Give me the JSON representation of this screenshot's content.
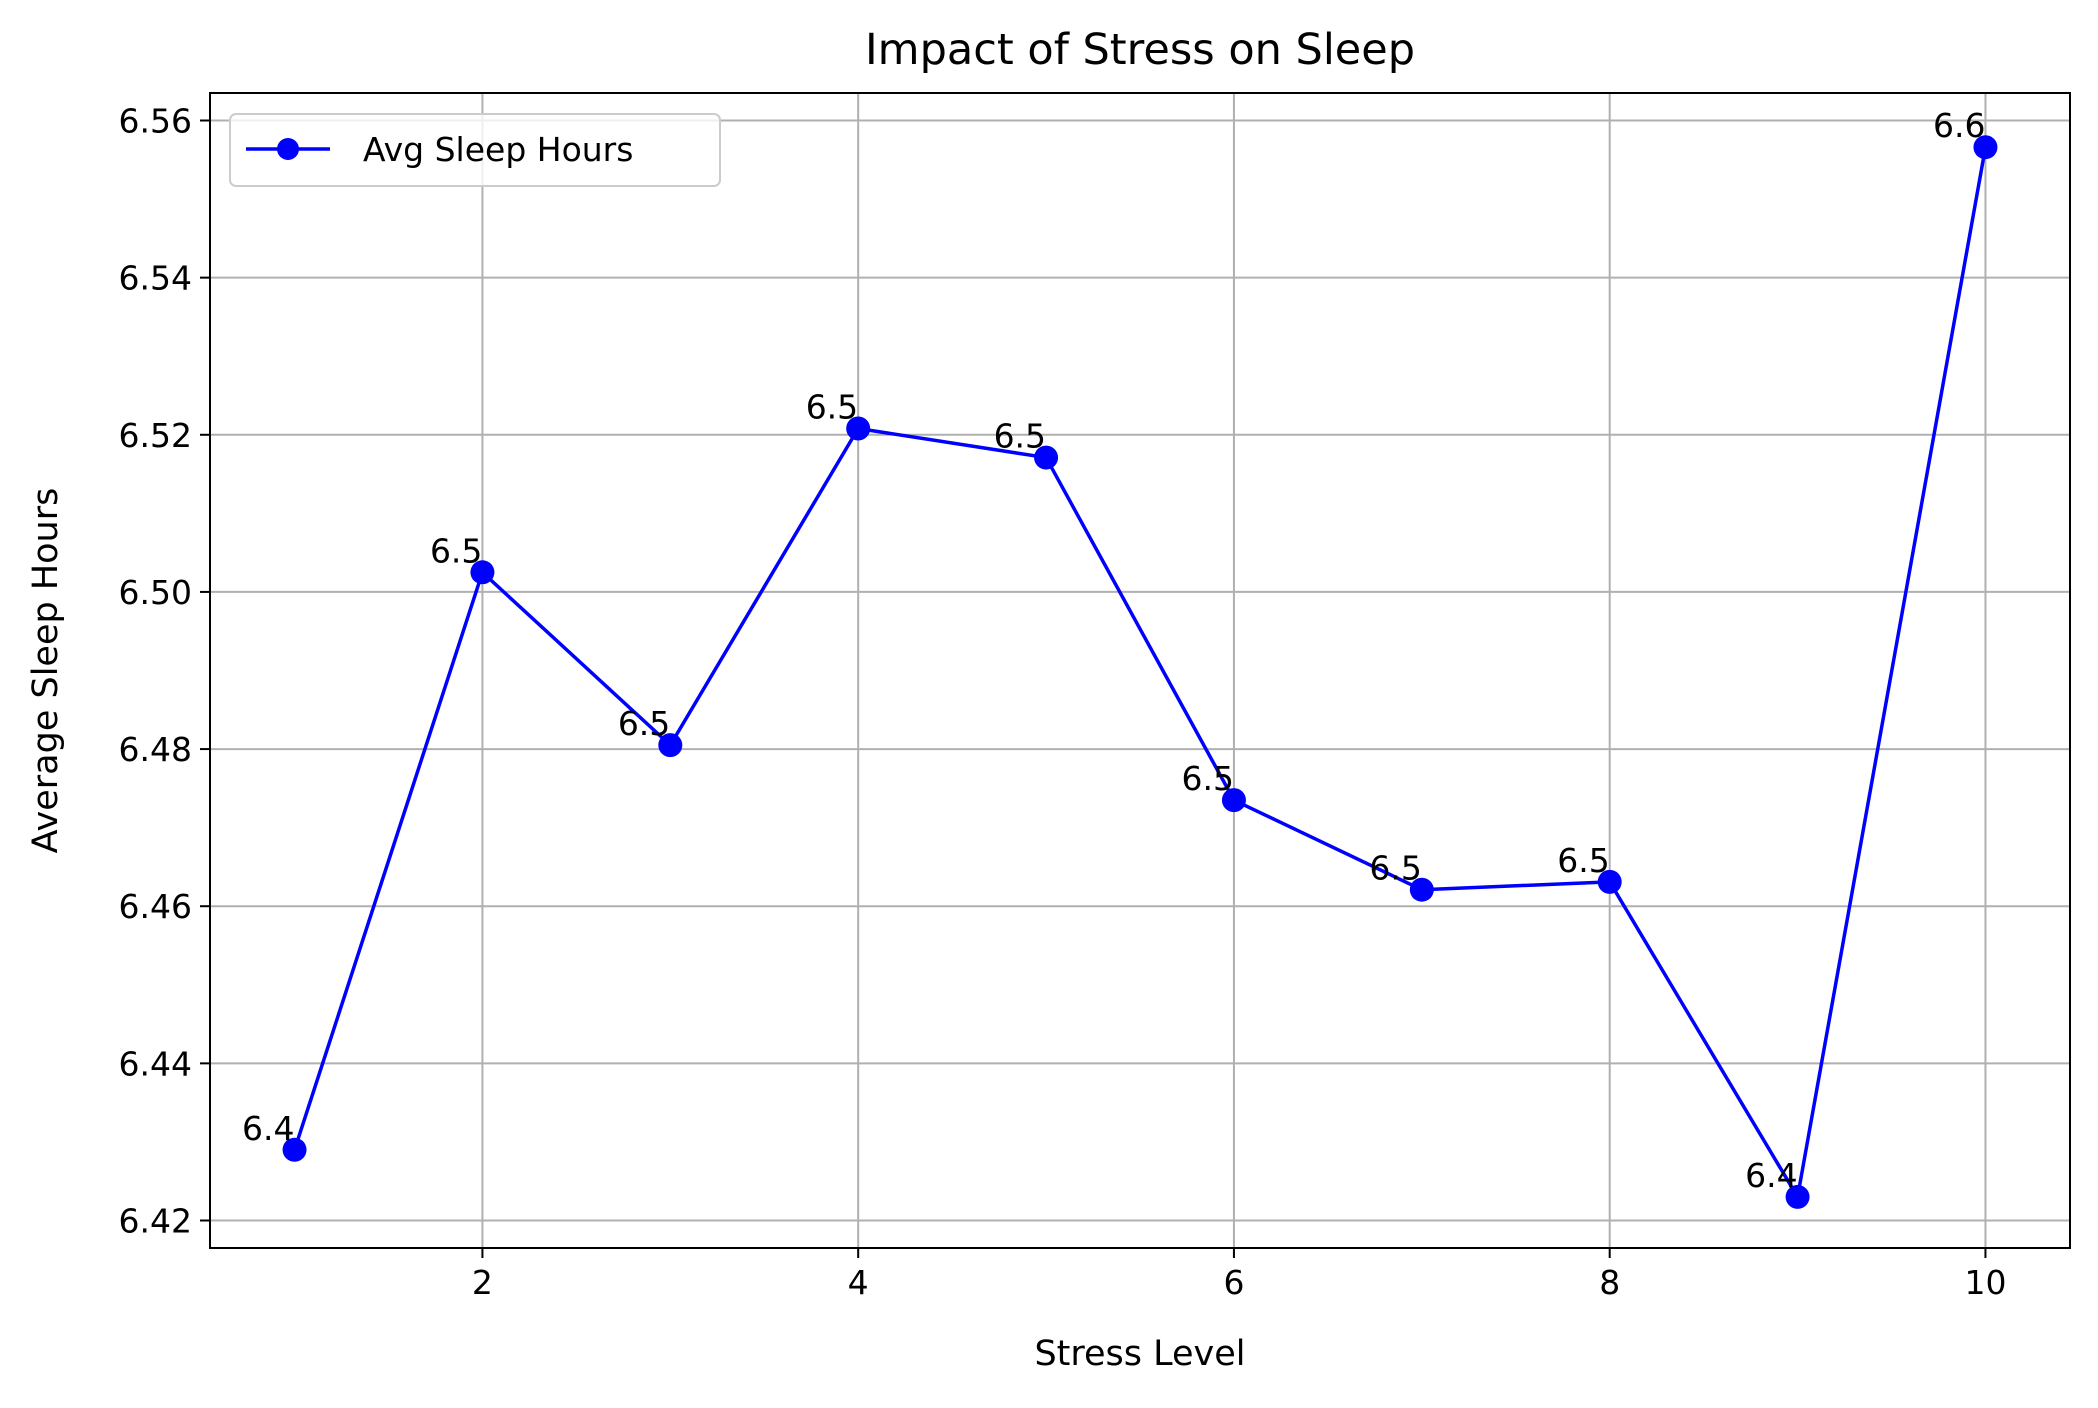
{
  "chart_data": {
    "type": "line",
    "title": "Impact of Stress on Sleep",
    "xlabel": "Stress Level",
    "ylabel": "Average Sleep Hours",
    "x": [
      1,
      2,
      3,
      4,
      5,
      6,
      7,
      8,
      9,
      10
    ],
    "series": [
      {
        "name": "Avg Sleep Hours",
        "values": [
          6.429,
          6.5025,
          6.4805,
          6.5208,
          6.5171,
          6.4735,
          6.4621,
          6.4631,
          6.423,
          6.5566
        ],
        "data_labels": [
          "6.4",
          "6.5",
          "6.5",
          "6.5",
          "6.5",
          "6.5",
          "6.5",
          "6.5",
          "6.4",
          "6.6"
        ],
        "color": "#0000ff",
        "marker": "circle"
      }
    ],
    "xlim": [
      0.55,
      10.45
    ],
    "ylim": [
      6.4165,
      6.5635
    ],
    "xticks": [
      2,
      4,
      6,
      8,
      10
    ],
    "xtick_labels": [
      "2",
      "4",
      "6",
      "8",
      "10"
    ],
    "yticks": [
      6.42,
      6.44,
      6.46,
      6.48,
      6.5,
      6.52,
      6.54,
      6.56
    ],
    "ytick_labels": [
      "6.42",
      "6.44",
      "6.46",
      "6.48",
      "6.50",
      "6.52",
      "6.54",
      "6.56"
    ],
    "grid": true,
    "legend_position": "top-left"
  }
}
